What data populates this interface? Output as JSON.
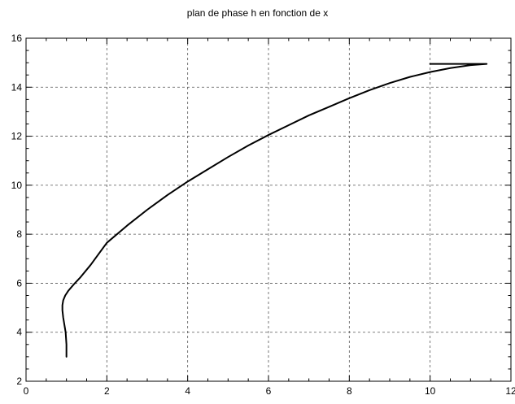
{
  "chart_data": {
    "type": "line",
    "title": "plan de phase h en fonction de x",
    "xlabel": "",
    "ylabel": "",
    "xlim": [
      0,
      12
    ],
    "ylim": [
      2,
      16
    ],
    "x_ticks": [
      "0",
      "2",
      "4",
      "6",
      "8",
      "10",
      "12"
    ],
    "y_ticks": [
      "2",
      "4",
      "6",
      "8",
      "10",
      "12",
      "14",
      "16"
    ],
    "grid": true,
    "line_color": "#000000",
    "series": [
      {
        "x": [
          1.0,
          1.0,
          0.98,
          0.95,
          0.92,
          0.9,
          0.9,
          0.92,
          0.97,
          1.05,
          1.18,
          1.35,
          1.6,
          2.0,
          2.5,
          3.0,
          3.5,
          4.0,
          4.5,
          5.0,
          5.5,
          6.0,
          6.5,
          7.0,
          7.5,
          8.0,
          8.5,
          9.0,
          9.5,
          10.0,
          10.5,
          11.0,
          11.4,
          10.0
        ],
        "y": [
          3.0,
          3.5,
          4.0,
          4.3,
          4.6,
          4.9,
          5.1,
          5.3,
          5.5,
          5.7,
          5.95,
          6.25,
          6.75,
          7.65,
          8.35,
          9.0,
          9.6,
          10.15,
          10.65,
          11.15,
          11.62,
          12.05,
          12.45,
          12.85,
          13.2,
          13.55,
          13.88,
          14.17,
          14.42,
          14.62,
          14.78,
          14.9,
          14.95,
          14.95
        ]
      }
    ]
  }
}
